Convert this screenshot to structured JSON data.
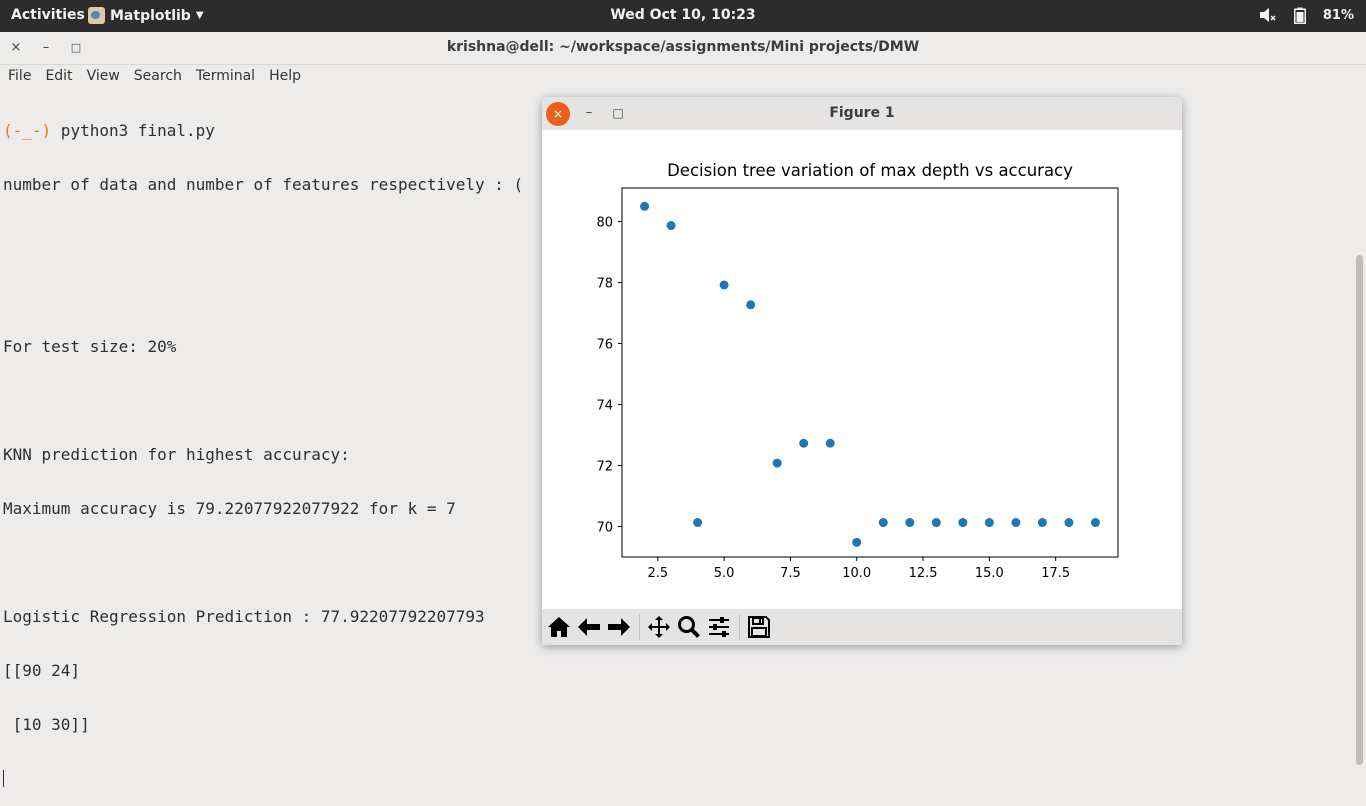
{
  "topbar": {
    "activities": "Activities",
    "app_name": "Matplotlib",
    "clock": "Wed Oct 10, 10:23",
    "battery": "81%"
  },
  "terminal": {
    "title": "krishna@dell: ~/workspace/assignments/Mini projects/DMW",
    "close_symbol": "×",
    "minimize_symbol": "–",
    "maximize_symbol": "□",
    "menu": [
      "File",
      "Edit",
      "View",
      "Search",
      "Terminal",
      "Help"
    ],
    "prompt": "(-_-)",
    "command": " python3 final.py",
    "lines": [
      "number of data and number of features respectively : (",
      "",
      "",
      "For test size: 20%",
      "",
      "KNN prediction for highest accuracy:",
      "Maximum accuracy is 79.22077922077922 for k = 7",
      "",
      "Logistic Regression Prediction : 77.92207792207793",
      "[[90 24]",
      " [10 30]]"
    ]
  },
  "figure": {
    "title": "Figure 1",
    "close_symbol": "×",
    "minimize_symbol": "–",
    "maximize_symbol": "□",
    "toolbar": [
      "home-icon",
      "back-arrow-icon",
      "forward-arrow-icon",
      "pan-icon",
      "zoom-icon",
      "configure-subplots-icon",
      "save-icon"
    ]
  },
  "chart_data": {
    "type": "scatter",
    "title": "Decision tree variation of max depth vs accuracy",
    "xlabel": "",
    "ylabel": "",
    "x": [
      2,
      3,
      4,
      5,
      6,
      7,
      8,
      9,
      10,
      11,
      12,
      13,
      14,
      15,
      16,
      17,
      18,
      19
    ],
    "y": [
      80.5,
      79.87,
      70.13,
      77.92,
      77.27,
      72.08,
      72.73,
      72.73,
      69.48,
      70.13,
      70.13,
      70.13,
      70.13,
      70.13,
      70.13,
      70.13,
      70.13,
      70.13
    ],
    "xlim": [
      1.15,
      19.85
    ],
    "ylim": [
      69.0,
      81.1
    ],
    "xticks": [
      "2.5",
      "5.0",
      "7.5",
      "10.0",
      "12.5",
      "15.0",
      "17.5"
    ],
    "xtick_values": [
      2.5,
      5.0,
      7.5,
      10.0,
      12.5,
      15.0,
      17.5
    ],
    "yticks": [
      "70",
      "72",
      "74",
      "76",
      "78",
      "80"
    ],
    "ytick_values": [
      70,
      72,
      74,
      76,
      78,
      80
    ],
    "marker_color": "#1f77b4",
    "grid": false
  }
}
